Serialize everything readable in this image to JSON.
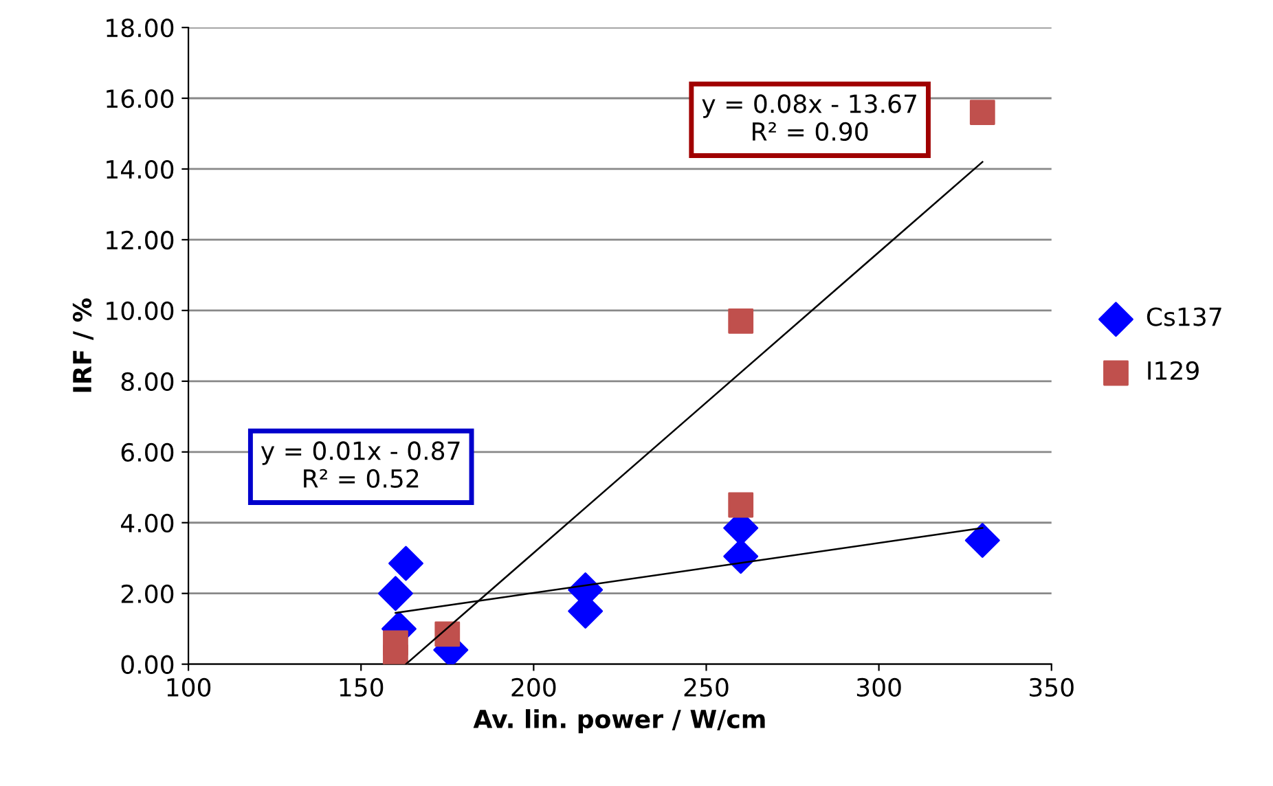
{
  "chart_data": {
    "type": "scatter",
    "xlabel": "Av. lin. power / W/cm",
    "ylabel": "IRF / %",
    "xlim": [
      100,
      350
    ],
    "xticks": [
      100,
      150,
      200,
      250,
      300,
      350
    ],
    "ylim": [
      0,
      18
    ],
    "yticks": [
      {
        "value": 0,
        "label": "0.00"
      },
      {
        "value": 2,
        "label": "2.00"
      },
      {
        "value": 4,
        "label": "4.00"
      },
      {
        "value": 6,
        "label": "6.00"
      },
      {
        "value": 8,
        "label": "8.00"
      },
      {
        "value": 10,
        "label": "10.00"
      },
      {
        "value": 12,
        "label": "12.00"
      },
      {
        "value": 14,
        "label": "14.00"
      },
      {
        "value": 16,
        "label": "16.00"
      },
      {
        "value": 18,
        "label": "18.00"
      }
    ],
    "grid": "y",
    "legend": "right",
    "series": [
      {
        "name": "Cs137",
        "color": "#0000ff",
        "marker": "diamond",
        "x": [
          160,
          163,
          161,
          176,
          215,
          215,
          260,
          260,
          330
        ],
        "values": [
          2.0,
          2.85,
          1.0,
          0.4,
          2.1,
          1.5,
          3.85,
          3.05,
          3.5
        ]
      },
      {
        "name": "I129",
        "color": "#c0504d",
        "marker": "square",
        "x": [
          160,
          160,
          175,
          260,
          260,
          330
        ],
        "values": [
          0.6,
          0.2,
          0.85,
          9.7,
          4.5,
          15.6
        ]
      },
      {
        "type": "line",
        "color": "#000000",
        "x": [
          160,
          330
        ],
        "values": [
          1.45,
          3.85
        ]
      },
      {
        "type": "line",
        "color": "#000000",
        "x": [
          163,
          330
        ],
        "values": [
          0.0,
          14.2
        ]
      }
    ],
    "annotations": [
      "y = 0.08x - 13.67\nR² = 0.90",
      "y = 0.01x - 0.87\nR² = 0.52"
    ]
  }
}
